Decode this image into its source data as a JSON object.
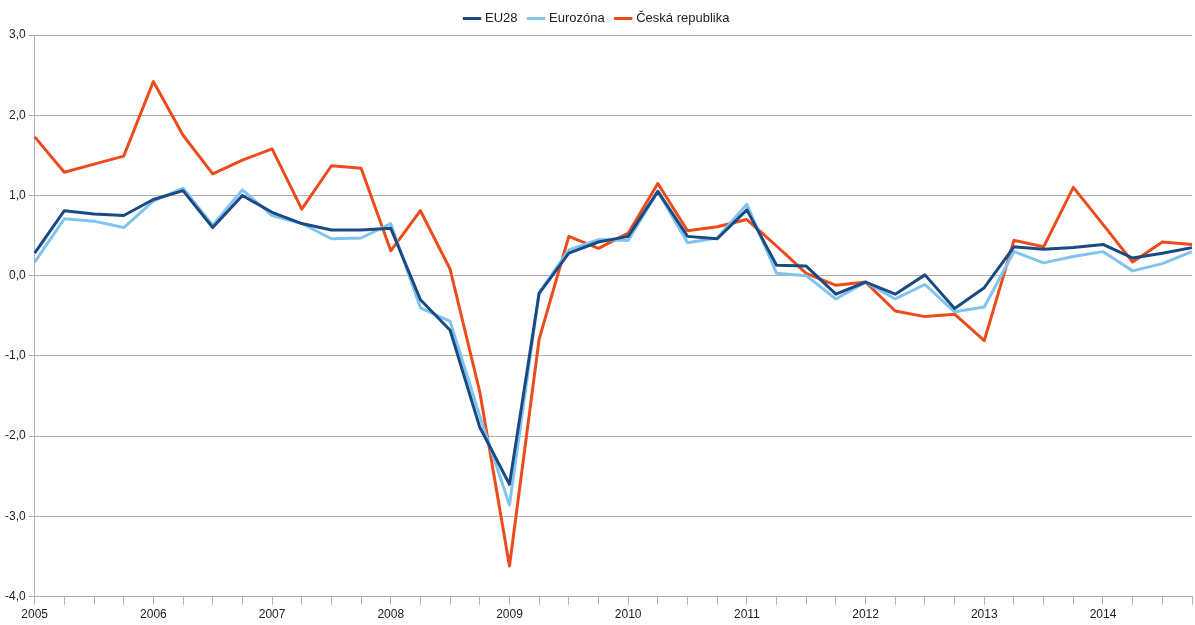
{
  "chart_data": {
    "type": "line",
    "categories": [
      "2005",
      null,
      null,
      null,
      "2006",
      null,
      null,
      null,
      "2007",
      null,
      null,
      null,
      "2008",
      null,
      null,
      null,
      "2009",
      null,
      null,
      null,
      "2010",
      null,
      null,
      null,
      "2011",
      null,
      null,
      null,
      "2012",
      null,
      null,
      null,
      "2013",
      null,
      null,
      null,
      "2014",
      null,
      null,
      null
    ],
    "series": [
      {
        "name": "EU28",
        "color": "#1a4a84",
        "values": [
          0.28,
          0.81,
          0.77,
          0.75,
          0.95,
          1.06,
          0.6,
          1.0,
          0.79,
          0.65,
          0.57,
          0.57,
          0.59,
          -0.3,
          -0.68,
          -1.89,
          -2.6,
          -0.22,
          0.28,
          0.42,
          0.49,
          1.05,
          0.49,
          0.46,
          0.82,
          0.13,
          0.12,
          -0.23,
          -0.08,
          -0.23,
          0.01,
          -0.41,
          -0.15,
          0.36,
          0.33,
          0.35,
          0.39,
          0.22,
          0.28,
          0.35
        ]
      },
      {
        "name": "Eurozóna",
        "color": "#80c4ee",
        "values": [
          0.17,
          0.71,
          0.68,
          0.6,
          0.93,
          1.09,
          0.63,
          1.07,
          0.75,
          0.65,
          0.46,
          0.47,
          0.65,
          -0.4,
          -0.57,
          -1.75,
          -2.86,
          -0.21,
          0.32,
          0.45,
          0.44,
          1.05,
          0.41,
          0.47,
          0.89,
          0.03,
          0.0,
          -0.29,
          -0.08,
          -0.29,
          -0.11,
          -0.45,
          -0.39,
          0.3,
          0.16,
          0.24,
          0.3,
          0.06,
          0.15,
          0.3
        ]
      },
      {
        "name": "Česká republika",
        "color": "#ee4b1c",
        "values": [
          1.73,
          1.29,
          1.39,
          1.49,
          2.42,
          1.75,
          1.27,
          1.44,
          1.58,
          0.83,
          1.37,
          1.34,
          0.31,
          0.81,
          0.08,
          -1.45,
          -3.62,
          -0.79,
          0.49,
          0.34,
          0.53,
          1.15,
          0.56,
          0.61,
          0.7,
          0.37,
          0.03,
          -0.12,
          -0.08,
          -0.44,
          -0.51,
          -0.48,
          -0.81,
          0.44,
          0.36,
          1.1,
          0.64,
          0.17,
          0.42,
          0.39
        ]
      }
    ],
    "ylim": [
      -4,
      3
    ],
    "yticks": [
      {
        "value": -4,
        "label": "-4,0"
      },
      {
        "value": -3,
        "label": "-3,0"
      },
      {
        "value": -2,
        "label": "-2,0"
      },
      {
        "value": -1,
        "label": "-1,0"
      },
      {
        "value": 0,
        "label": "0,0"
      },
      {
        "value": 1,
        "label": "1,0"
      },
      {
        "value": 2,
        "label": "2,0"
      },
      {
        "value": 3,
        "label": "3,0"
      }
    ],
    "grid": "y",
    "legend": "top",
    "marker": "none",
    "line_style": "solid"
  }
}
